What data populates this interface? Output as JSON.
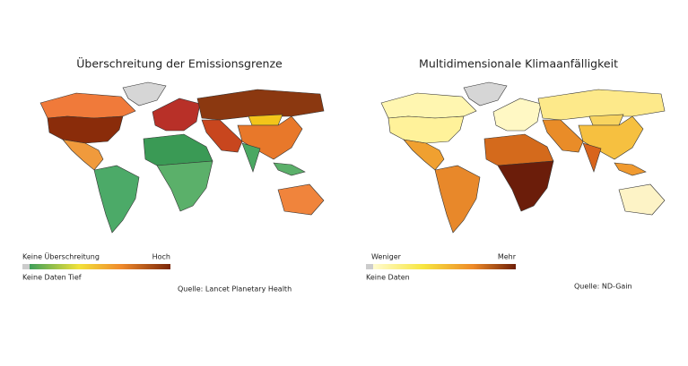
{
  "maps": [
    {
      "title": "Überschreitung der Emissionsgrenze",
      "legend": {
        "top_left": "Keine Überschreitung",
        "top_right": "Hoch",
        "no_data": "Keine Daten",
        "low": "Tief"
      },
      "source": "Quelle: Lancet Planetary Health"
    },
    {
      "title": "Multidimensionale Klimaanfälligkeit",
      "legend": {
        "top_left": "Weniger",
        "top_right": "Mehr",
        "no_data": "Keine Daten"
      },
      "source": "Quelle: ND-Gain"
    }
  ]
}
